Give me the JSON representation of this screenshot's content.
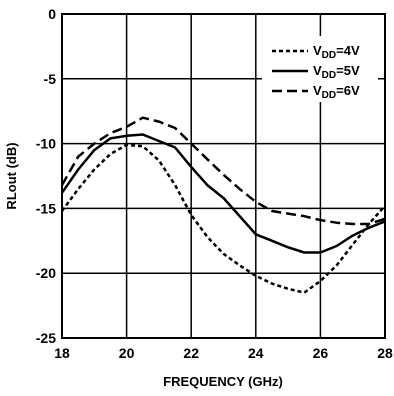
{
  "chart_data": {
    "type": "line",
    "title": "",
    "xlabel": "FREQUENCY (GHz)",
    "ylabel": "RLout (dB)",
    "xlim": [
      18,
      28
    ],
    "ylim": [
      -25,
      0
    ],
    "x_ticks": [
      "18",
      "20",
      "22",
      "24",
      "26",
      "28"
    ],
    "y_ticks": [
      "0",
      "-5",
      "-10",
      "-15",
      "-20",
      "-25"
    ],
    "grid": true,
    "legend_position": "top-right",
    "series": [
      {
        "name": "VDD=4V",
        "legend": {
          "base": "V",
          "sub": "DD",
          "rest": "=4V"
        },
        "dash": "short-dash",
        "x": [
          18,
          18.5,
          19,
          19.5,
          20,
          20.5,
          21,
          21.5,
          22,
          22.5,
          23,
          23.5,
          24,
          24.5,
          25,
          25.5,
          26,
          26.5,
          27,
          27.5,
          28
        ],
        "y": [
          -15.2,
          -13.5,
          -12,
          -10.8,
          -10.1,
          -10.2,
          -11.3,
          -13.2,
          -15.5,
          -17.2,
          -18.5,
          -19.4,
          -20.2,
          -20.8,
          -21.2,
          -21.5,
          -20.6,
          -19.4,
          -17.8,
          -16.2,
          -14.8
        ]
      },
      {
        "name": "VDD=5V",
        "legend": {
          "base": "V",
          "sub": "DD",
          "rest": "=5V"
        },
        "dash": "solid",
        "x": [
          18,
          18.5,
          19,
          19.5,
          20,
          20.5,
          21,
          21.5,
          22,
          22.5,
          23,
          23.5,
          24,
          24.5,
          25,
          25.5,
          26,
          26.5,
          27,
          27.5,
          28
        ],
        "y": [
          -13.8,
          -12,
          -10.5,
          -9.6,
          -9.4,
          -9.3,
          -9.8,
          -10.3,
          -11.8,
          -13.2,
          -14.2,
          -15.6,
          -17,
          -17.5,
          -18,
          -18.4,
          -18.4,
          -17.9,
          -17.1,
          -16.5,
          -16
        ]
      },
      {
        "name": "VDD=6V",
        "legend": {
          "base": "V",
          "sub": "DD",
          "rest": "=6V"
        },
        "dash": "long-dash",
        "x": [
          18,
          18.5,
          19,
          19.5,
          20,
          20.5,
          21,
          21.5,
          22,
          22.5,
          23,
          23.5,
          24,
          24.5,
          25,
          25.5,
          26,
          26.5,
          27,
          27.5,
          28
        ],
        "y": [
          -13.2,
          -11,
          -10,
          -9.2,
          -8.7,
          -8,
          -8.3,
          -8.8,
          -10,
          -11.2,
          -12.4,
          -13.5,
          -14.5,
          -15.2,
          -15.4,
          -15.6,
          -15.9,
          -16.1,
          -16.2,
          -16.2,
          -15.8
        ]
      }
    ]
  }
}
